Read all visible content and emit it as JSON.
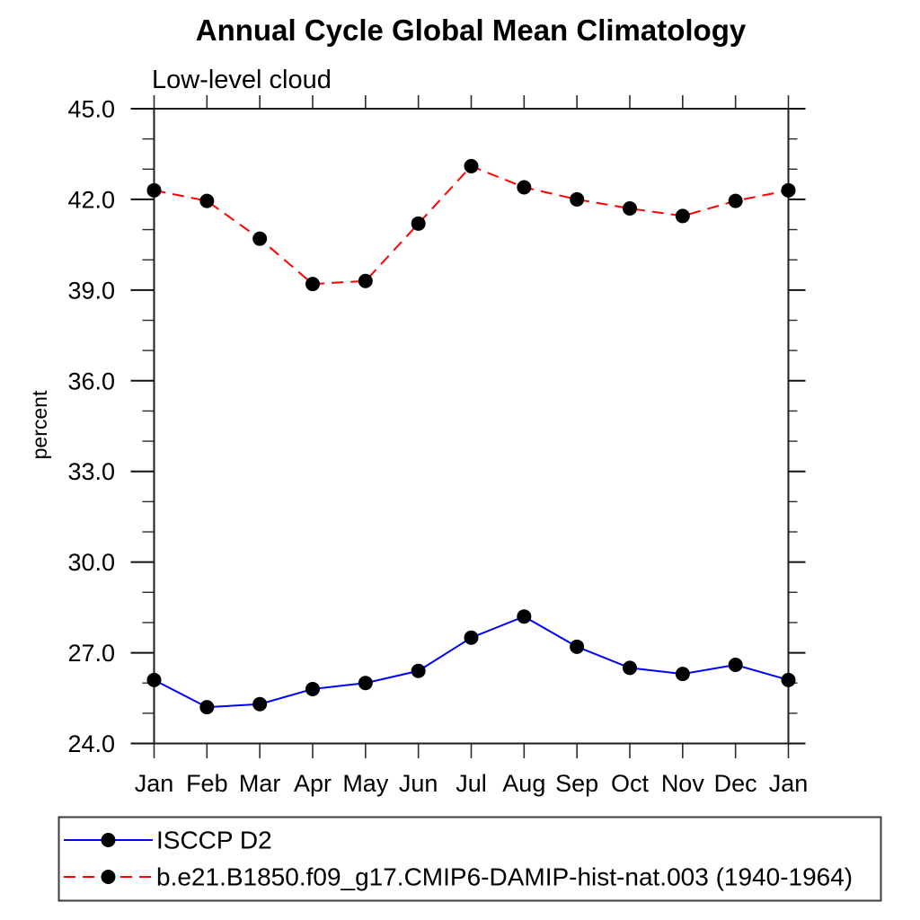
{
  "window": {
    "background": "#ffffff"
  },
  "chart_data": {
    "type": "line",
    "title": "Annual Cycle Global Mean Climatology",
    "subtitle": "Low-level cloud",
    "xlabel": "",
    "ylabel": "percent",
    "x_categories": [
      "Jan",
      "Feb",
      "Mar",
      "Apr",
      "May",
      "Jun",
      "Jul",
      "Aug",
      "Sep",
      "Oct",
      "Nov",
      "Dec",
      "Jan"
    ],
    "ylim": [
      24.0,
      45.0
    ],
    "ytick_major_values": [
      24.0,
      27.0,
      30.0,
      33.0,
      36.0,
      39.0,
      42.0,
      45.0
    ],
    "ytick_major_labels": [
      "24.0",
      "27.0",
      "30.0",
      "33.0",
      "36.0",
      "39.0",
      "42.0",
      "45.0"
    ],
    "ytick_minor_step": 1.0,
    "grid": false,
    "legend_position": "bottom-left-box",
    "series": [
      {
        "name": "ISCCP D2",
        "color": "#0000ff",
        "line_style": "solid",
        "marker": "filled-circle",
        "marker_color": "#000000",
        "values": [
          26.1,
          25.2,
          25.3,
          25.8,
          26.0,
          26.4,
          27.5,
          28.2,
          27.2,
          26.5,
          26.3,
          26.6,
          26.1
        ]
      },
      {
        "name": "b.e21.B1850.f09_g17.CMIP6-DAMIP-hist-nat.003 (1940-1964)",
        "color": "#ff0000",
        "line_style": "dashed",
        "marker": "filled-circle",
        "marker_color": "#000000",
        "values": [
          42.3,
          41.95,
          40.7,
          39.2,
          39.3,
          41.2,
          43.1,
          42.4,
          42.0,
          41.7,
          41.45,
          41.95,
          42.3
        ]
      }
    ]
  }
}
